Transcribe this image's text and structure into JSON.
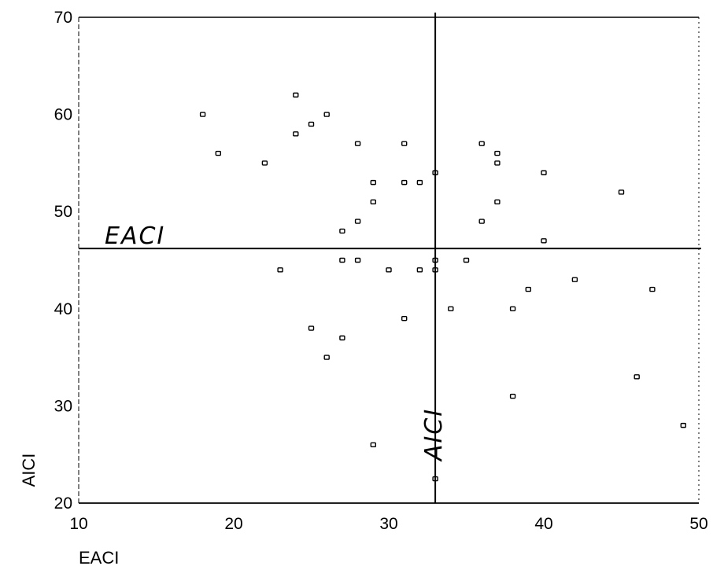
{
  "chart_data": {
    "type": "scatter",
    "title": "",
    "xlabel": "EACI",
    "ylabel": "AICI",
    "xlim": [
      10,
      50
    ],
    "ylim": [
      20,
      70
    ],
    "xticks": [
      10,
      20,
      30,
      40,
      50
    ],
    "yticks": [
      20,
      30,
      40,
      50,
      60,
      70
    ],
    "grid": false,
    "reference_lines": [
      {
        "axis": "y",
        "value": 46.2,
        "label": "EACI"
      },
      {
        "axis": "x",
        "value": 33,
        "label": "AICI"
      }
    ],
    "points": [
      {
        "x": 18,
        "y": 60
      },
      {
        "x": 19,
        "y": 56
      },
      {
        "x": 22,
        "y": 55
      },
      {
        "x": 24,
        "y": 62
      },
      {
        "x": 24,
        "y": 58
      },
      {
        "x": 25,
        "y": 59
      },
      {
        "x": 26,
        "y": 60
      },
      {
        "x": 28,
        "y": 57
      },
      {
        "x": 29,
        "y": 53
      },
      {
        "x": 29,
        "y": 51
      },
      {
        "x": 28,
        "y": 49
      },
      {
        "x": 27,
        "y": 48
      },
      {
        "x": 31,
        "y": 57
      },
      {
        "x": 31,
        "y": 53
      },
      {
        "x": 32,
        "y": 53
      },
      {
        "x": 33,
        "y": 54
      },
      {
        "x": 36,
        "y": 57
      },
      {
        "x": 37,
        "y": 56
      },
      {
        "x": 37,
        "y": 55
      },
      {
        "x": 37,
        "y": 51
      },
      {
        "x": 36,
        "y": 49
      },
      {
        "x": 40,
        "y": 54
      },
      {
        "x": 45,
        "y": 52
      },
      {
        "x": 40,
        "y": 47
      },
      {
        "x": 23,
        "y": 44
      },
      {
        "x": 27,
        "y": 45
      },
      {
        "x": 28,
        "y": 45
      },
      {
        "x": 30,
        "y": 44
      },
      {
        "x": 32,
        "y": 44
      },
      {
        "x": 33,
        "y": 45
      },
      {
        "x": 33,
        "y": 44
      },
      {
        "x": 35,
        "y": 45
      },
      {
        "x": 34,
        "y": 40
      },
      {
        "x": 31,
        "y": 39
      },
      {
        "x": 25,
        "y": 38
      },
      {
        "x": 27,
        "y": 37
      },
      {
        "x": 26,
        "y": 35
      },
      {
        "x": 38,
        "y": 40
      },
      {
        "x": 39,
        "y": 42
      },
      {
        "x": 42,
        "y": 43
      },
      {
        "x": 47,
        "y": 42
      },
      {
        "x": 46,
        "y": 33
      },
      {
        "x": 38,
        "y": 31
      },
      {
        "x": 49,
        "y": 28
      },
      {
        "x": 29,
        "y": 26
      },
      {
        "x": 33,
        "y": 22.5
      }
    ]
  }
}
